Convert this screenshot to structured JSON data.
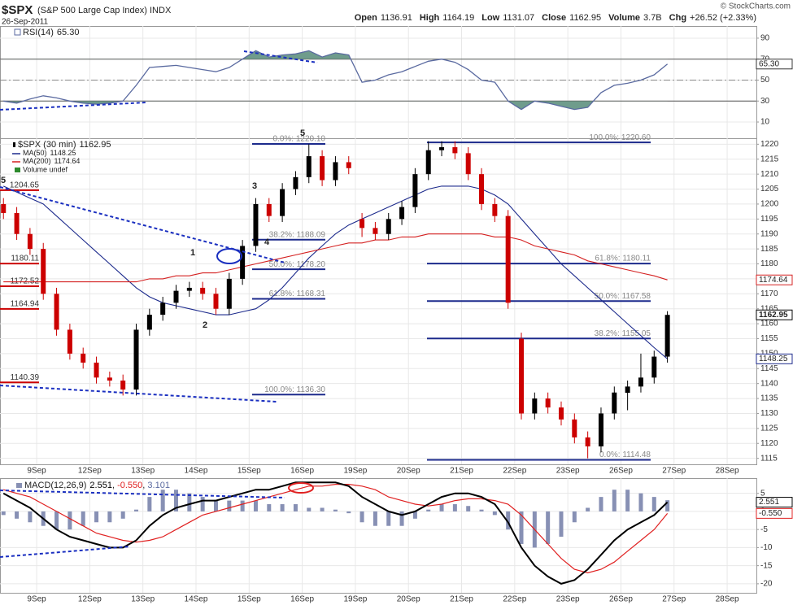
{
  "header": {
    "symbol": "$SPX",
    "description": "(S&P 500 Large Cap Index) INDX",
    "date": "26-Sep-2011",
    "quote": [
      {
        "label": "Open",
        "value": 1136.91
      },
      {
        "label": "High",
        "value": 1164.19
      },
      {
        "label": "Low",
        "value": 1131.07
      },
      {
        "label": "Close",
        "value": 1162.95
      },
      {
        "label": "Volume",
        "value": "3.7B"
      },
      {
        "label": "Chg",
        "value": "+26.52 (+2.33%)"
      }
    ],
    "credit": "© StockCharts.com"
  },
  "chart_data": [
    {
      "type": "line",
      "x_tick_labels": false,
      "x": [
        -0.625,
        -0.375,
        -0.125,
        0.125,
        0.375,
        0.625,
        0.875,
        1.125,
        1.375,
        1.625,
        1.875,
        2.125,
        2.375,
        2.625,
        2.875,
        3.125,
        3.375,
        3.625,
        3.875,
        4.125,
        4.375,
        4.625,
        4.875,
        5.125,
        5.375,
        5.625,
        5.875,
        6.125,
        6.375,
        6.625,
        6.875,
        7.125,
        7.375,
        7.625,
        7.875,
        8.125,
        8.375,
        8.625,
        8.875,
        9.125,
        9.375,
        9.625,
        9.875,
        10.125,
        10.375,
        10.625,
        10.875,
        11.125,
        11.375,
        11.625,
        11.875
      ],
      "series": [
        {
          "name": "RSI(14)",
          "color": "#5a6aa0",
          "values": [
            30,
            28,
            32,
            35,
            33,
            30,
            28,
            27,
            28,
            30,
            45,
            62,
            63,
            64,
            62,
            60,
            58,
            62,
            70,
            78,
            72,
            74,
            75,
            78,
            72,
            76,
            74,
            48,
            50,
            55,
            58,
            63,
            68,
            70,
            67,
            60,
            50,
            48,
            30,
            22,
            30,
            28,
            25,
            22,
            24,
            38,
            45,
            47,
            50,
            55,
            65.3
          ],
          "value_labels": [
            null,
            null,
            null,
            null,
            null,
            null,
            null,
            null,
            null,
            null,
            null,
            null,
            null,
            null,
            null,
            null,
            null,
            null,
            null,
            null,
            null,
            null,
            null,
            null,
            null,
            null,
            null,
            null,
            null,
            null,
            null,
            null,
            null,
            null,
            null,
            null,
            null,
            null,
            null,
            null,
            null,
            null,
            null,
            null,
            null,
            null,
            null,
            null,
            null,
            null,
            "65.30"
          ]
        }
      ],
      "fill_color": "#6f9c8c",
      "xlim": [
        -0.69,
        13.55
      ],
      "xticks": [
        {
          "value": 0,
          "label": "9Sep"
        },
        {
          "value": 1,
          "label": "12Sep"
        },
        {
          "value": 2,
          "label": "13Sep"
        },
        {
          "value": 3,
          "label": "14Sep"
        },
        {
          "value": 4,
          "label": "15Sep"
        },
        {
          "value": 5,
          "label": "16Sep"
        },
        {
          "value": 6,
          "label": "19Sep"
        },
        {
          "value": 7,
          "label": "20Sep"
        },
        {
          "value": 8,
          "label": "21Sep"
        },
        {
          "value": 9,
          "label": "22Sep"
        },
        {
          "value": 10,
          "label": "23Sep"
        },
        {
          "value": 11,
          "label": "26Sep"
        },
        {
          "value": 12,
          "label": "27Sep"
        },
        {
          "value": 13,
          "label": "28Sep"
        }
      ],
      "ylim": [
        -5.5,
        101.6
      ],
      "yticks": [
        10,
        30,
        50,
        70,
        90
      ],
      "grid": true
    },
    {
      "type": "candlestick",
      "name": "$SPX (30 min)",
      "x_tick_labels": true,
      "x": [
        -0.625,
        -0.375,
        -0.125,
        0.125,
        0.375,
        0.625,
        0.875,
        1.125,
        1.375,
        1.625,
        1.875,
        2.125,
        2.375,
        2.625,
        2.875,
        3.125,
        3.375,
        3.625,
        3.875,
        4.125,
        4.375,
        4.625,
        4.875,
        5.125,
        5.375,
        5.625,
        5.875,
        6.125,
        6.375,
        6.625,
        6.875,
        7.125,
        7.375,
        7.625,
        7.875,
        8.125,
        8.375,
        8.625,
        8.875,
        9.125,
        9.375,
        9.625,
        9.875,
        10.125,
        10.375,
        10.625,
        10.875,
        11.125,
        11.375,
        11.625,
        11.875
      ],
      "open": [
        1200,
        1197,
        1190,
        1185,
        1170,
        1158,
        1150,
        1147,
        1142,
        1141,
        1138,
        1158,
        1163,
        1167,
        1171,
        1172,
        1170,
        1165,
        1175,
        1186,
        1200,
        1196,
        1205,
        1209,
        1216,
        1208,
        1214,
        1195,
        1192,
        1190,
        1195,
        1199,
        1210,
        1218,
        1219,
        1217,
        1210,
        1200,
        1196,
        1155,
        1130,
        1135,
        1132,
        1128,
        1122,
        1119,
        1130,
        1136.91,
        1139,
        1142,
        1149
      ],
      "high": [
        1202,
        1199,
        1192,
        1187,
        1172,
        1160,
        1152,
        1149,
        1144,
        1143,
        1160,
        1165,
        1169,
        1173,
        1174,
        1174,
        1172,
        1177,
        1188,
        1202,
        1202,
        1207,
        1211,
        1220,
        1218,
        1216,
        1216,
        1197,
        1194,
        1197,
        1201,
        1212,
        1221,
        1221,
        1221,
        1219,
        1212,
        1202,
        1198,
        1157,
        1137,
        1137,
        1134,
        1130,
        1124,
        1132,
        1139,
        1141,
        1150,
        1151,
        1164.19
      ],
      "low": [
        1195,
        1188,
        1183,
        1168,
        1156,
        1148,
        1145,
        1140,
        1139,
        1136,
        1136,
        1156,
        1161,
        1165,
        1169,
        1168,
        1163,
        1163,
        1173,
        1184,
        1194,
        1194,
        1203,
        1207,
        1206,
        1206,
        1210,
        1189,
        1188,
        1188,
        1193,
        1197,
        1208,
        1216,
        1215,
        1208,
        1198,
        1194,
        1165,
        1128,
        1128,
        1130,
        1126,
        1120,
        1115,
        1117,
        1128,
        1131.07,
        1137,
        1140,
        1147
      ],
      "close": [
        1197,
        1190,
        1185,
        1170,
        1158,
        1150,
        1147,
        1142,
        1141,
        1138,
        1158,
        1163,
        1167,
        1171,
        1172,
        1170,
        1165,
        1175,
        1186,
        1200,
        1196,
        1205,
        1209,
        1216,
        1208,
        1214,
        1212,
        1192,
        1190,
        1195,
        1199,
        1210,
        1218,
        1219,
        1217,
        1210,
        1200,
        1196,
        1167,
        1130,
        1135,
        1132,
        1128,
        1122,
        1119,
        1130,
        1137,
        1139,
        1142,
        1149,
        1162.95
      ],
      "up_color": "#000000",
      "down_color": "#cc0000",
      "series": [
        {
          "name": "MA(50)",
          "color": "#1c2a8c",
          "values": [
            1206,
            1204,
            1202,
            1200,
            1196,
            1192,
            1188,
            1184,
            1180,
            1176,
            1172,
            1169,
            1167,
            1166,
            1165,
            1164,
            1163,
            1163,
            1164,
            1165,
            1168,
            1172,
            1177,
            1182,
            1186,
            1190,
            1193,
            1195,
            1197,
            1199,
            1201,
            1203,
            1205,
            1206,
            1206,
            1206,
            1205,
            1203,
            1200,
            1195,
            1190,
            1185,
            1180,
            1176,
            1172,
            1168,
            1164,
            1160,
            1156,
            1152,
            1148.25
          ]
        },
        {
          "name": "MA(200)",
          "color": "#d42020",
          "values": [
            1174,
            1174,
            1174,
            1174,
            1174,
            1174,
            1174,
            1174,
            1174,
            1174,
            1174,
            1175,
            1175,
            1176,
            1176,
            1177,
            1177,
            1178,
            1179,
            1180,
            1181,
            1182,
            1183,
            1184,
            1185,
            1186,
            1187,
            1187,
            1188,
            1188,
            1189,
            1189,
            1190,
            1190,
            1190,
            1190,
            1190,
            1189,
            1189,
            1188,
            1186,
            1185,
            1184,
            1183,
            1181,
            1180,
            1179,
            1178,
            1177,
            1176,
            1174.64
          ]
        }
      ],
      "volume_label": "Volume undef",
      "fib_levels": [
        [
          {
            "value": 1220.1,
            "label": "0.0%: 1220.10"
          },
          {
            "value": 1188.09,
            "label": "38.2%: 1188.09"
          },
          {
            "value": 1178.2,
            "label": "50.0%: 1178.20"
          },
          {
            "value": 1168.31,
            "label": "61.8%: 1168.31"
          },
          {
            "value": 1136.3,
            "label": "100.0%: 1136.30"
          }
        ],
        [
          {
            "value": 1220.6,
            "label": "100.0%: 1220.60"
          },
          {
            "value": 1180.11,
            "label": "61.8%: 1180.11"
          },
          {
            "value": 1167.58,
            "label": "50.0%: 1167.58"
          },
          {
            "value": 1155.05,
            "label": "38.2%: 1155.05"
          },
          {
            "value": 1114.48,
            "label": "0.0%: 1114.48"
          }
        ]
      ],
      "price_levels": [
        1204.65,
        1180.11,
        1172.52,
        1164.94,
        1140.39
      ],
      "annotations": [
        "5",
        "1",
        "2",
        "3",
        "4",
        "5"
      ],
      "xlim": [
        -0.69,
        13.55
      ],
      "xticks": [
        {
          "value": 0,
          "label": "9Sep"
        },
        {
          "value": 1,
          "label": "12Sep"
        },
        {
          "value": 2,
          "label": "13Sep"
        },
        {
          "value": 3,
          "label": "14Sep"
        },
        {
          "value": 4,
          "label": "15Sep"
        },
        {
          "value": 5,
          "label": "16Sep"
        },
        {
          "value": 6,
          "label": "19Sep"
        },
        {
          "value": 7,
          "label": "20Sep"
        },
        {
          "value": 8,
          "label": "21Sep"
        },
        {
          "value": 9,
          "label": "22Sep"
        },
        {
          "value": 10,
          "label": "23Sep"
        },
        {
          "value": 11,
          "label": "26Sep"
        },
        {
          "value": 12,
          "label": "27Sep"
        },
        {
          "value": 13,
          "label": "28Sep"
        }
      ],
      "ylim": [
        1113,
        1222
      ],
      "yticks": [
        1115,
        1120,
        1125,
        1130,
        1135,
        1140,
        1145,
        1150,
        1155,
        1160,
        1165,
        1170,
        1175,
        1180,
        1185,
        1190,
        1195,
        1200,
        1205,
        1210,
        1215,
        1220
      ],
      "grid": true
    },
    {
      "type": "macd",
      "title": "MACD(12,26,9)",
      "x_tick_labels": true,
      "x": [
        -0.625,
        -0.375,
        -0.125,
        0.125,
        0.375,
        0.625,
        0.875,
        1.125,
        1.375,
        1.625,
        1.875,
        2.125,
        2.375,
        2.625,
        2.875,
        3.125,
        3.375,
        3.625,
        3.875,
        4.125,
        4.375,
        4.625,
        4.875,
        5.125,
        5.375,
        5.625,
        5.875,
        6.125,
        6.375,
        6.625,
        6.875,
        7.125,
        7.375,
        7.625,
        7.875,
        8.125,
        8.375,
        8.625,
        8.875,
        9.125,
        9.375,
        9.625,
        9.875,
        10.125,
        10.375,
        10.625,
        10.875,
        11.125,
        11.375,
        11.625,
        11.875
      ],
      "macd": {
        "color": "#000000",
        "values": [
          5,
          3,
          1,
          -2,
          -5,
          -7,
          -8,
          -9,
          -10,
          -10,
          -8,
          -4,
          -1,
          1,
          2,
          3,
          3,
          4,
          5,
          6,
          6,
          7,
          8,
          8,
          8,
          8,
          7,
          4,
          2,
          0,
          -1,
          0,
          2,
          4,
          5,
          5,
          4,
          2,
          -3,
          -10,
          -15,
          -18,
          -20,
          -19,
          -16,
          -12,
          -8,
          -5,
          -3,
          -1,
          2.551
        ]
      },
      "signal": {
        "color": "#e02020",
        "values": [
          6,
          5,
          4,
          2,
          0,
          -2,
          -4,
          -6,
          -7,
          -8,
          -8.5,
          -8,
          -7,
          -5,
          -3,
          -1,
          0,
          1,
          2,
          3,
          4,
          5,
          6,
          7,
          7,
          7.5,
          7.5,
          7,
          6,
          4,
          3,
          2,
          1.5,
          2,
          3,
          3.5,
          3.5,
          3,
          2,
          -1,
          -5,
          -9,
          -13,
          -16,
          -17,
          -16,
          -14,
          -11,
          -8,
          -5,
          -0.55
        ],
        "value_labels": [
          null,
          null,
          null,
          null,
          null,
          null,
          null,
          null,
          null,
          null,
          null,
          null,
          null,
          null,
          null,
          null,
          null,
          null,
          null,
          null,
          null,
          null,
          null,
          null,
          null,
          null,
          null,
          null,
          null,
          null,
          null,
          null,
          null,
          null,
          null,
          null,
          null,
          null,
          null,
          null,
          null,
          null,
          null,
          null,
          null,
          null,
          null,
          null,
          null,
          null,
          "-0.550"
        ]
      },
      "histogram": {
        "color": "#8790b4",
        "values": [
          -1,
          -2,
          -3,
          -4,
          -5,
          -5,
          -4,
          -3,
          -3,
          -2,
          0.5,
          4,
          6,
          6,
          5,
          4,
          3,
          3,
          3,
          3,
          2,
          2,
          2,
          1,
          1,
          0.5,
          -0.5,
          -3,
          -4,
          -4,
          -4,
          -2,
          0.5,
          2,
          2,
          1.5,
          0.5,
          -1,
          -5,
          -9,
          -10,
          -9,
          -7,
          -3,
          1,
          4,
          6,
          6,
          5,
          4,
          3.101
        ]
      },
      "xlim": [
        -0.69,
        13.55
      ],
      "xticks": [
        {
          "value": 0,
          "label": "9Sep"
        },
        {
          "value": 1,
          "label": "12Sep"
        },
        {
          "value": 2,
          "label": "13Sep"
        },
        {
          "value": 3,
          "label": "14Sep"
        },
        {
          "value": 4,
          "label": "15Sep"
        },
        {
          "value": 5,
          "label": "16Sep"
        },
        {
          "value": 6,
          "label": "19Sep"
        },
        {
          "value": 7,
          "label": "20Sep"
        },
        {
          "value": 8,
          "label": "21Sep"
        },
        {
          "value": 9,
          "label": "22Sep"
        },
        {
          "value": 10,
          "label": "23Sep"
        },
        {
          "value": 11,
          "label": "26Sep"
        },
        {
          "value": 12,
          "label": "27Sep"
        },
        {
          "value": 13,
          "label": "28Sep"
        }
      ],
      "ylim": [
        -22.5,
        9.2
      ],
      "yticks": [
        5,
        0,
        -5,
        -10,
        -15,
        -20
      ],
      "grid": true
    }
  ]
}
